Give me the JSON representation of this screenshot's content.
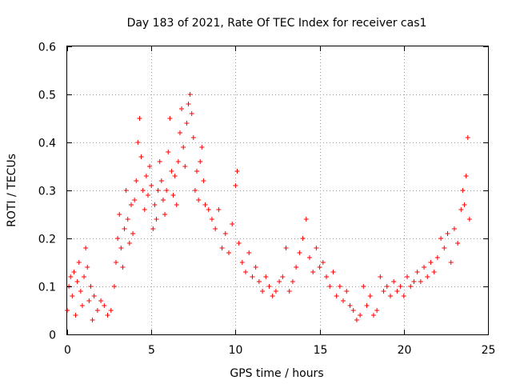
{
  "chart_data": {
    "type": "scatter",
    "title": "Day 183 of 2021, Rate Of TEC Index for receiver cas1",
    "xlabel": "GPS time / hours",
    "ylabel": "ROTI / TECUs",
    "xlim": [
      0,
      25
    ],
    "ylim": [
      0,
      0.6
    ],
    "x_ticks": [
      0,
      5,
      10,
      15,
      20,
      25
    ],
    "y_ticks": [
      0,
      0.1,
      0.2,
      0.3,
      0.4,
      0.5,
      0.6
    ],
    "x_tick_labels": [
      "0",
      "5",
      "10",
      "15",
      "20",
      "25"
    ],
    "y_tick_labels": [
      "0",
      "0.1",
      "0.2",
      "0.3",
      "0.4",
      "0.5",
      "0.6"
    ],
    "grid": true,
    "marker": "+",
    "marker_color": "#ff0000",
    "series": [
      {
        "points": [
          [
            0.0,
            0.05
          ],
          [
            0.1,
            0.1
          ],
          [
            0.2,
            0.12
          ],
          [
            0.3,
            0.08
          ],
          [
            0.4,
            0.13
          ],
          [
            0.5,
            0.04
          ],
          [
            0.6,
            0.11
          ],
          [
            0.7,
            0.15
          ],
          [
            0.8,
            0.09
          ],
          [
            0.9,
            0.06
          ],
          [
            1.0,
            0.12
          ],
          [
            1.1,
            0.18
          ],
          [
            1.2,
            0.14
          ],
          [
            1.3,
            0.07
          ],
          [
            1.4,
            0.1
          ],
          [
            1.5,
            0.03
          ],
          [
            1.6,
            0.08
          ],
          [
            1.8,
            0.05
          ],
          [
            2.0,
            0.07
          ],
          [
            2.2,
            0.06
          ],
          [
            2.4,
            0.04
          ],
          [
            2.6,
            0.05
          ],
          [
            2.8,
            0.1
          ],
          [
            2.9,
            0.15
          ],
          [
            3.0,
            0.2
          ],
          [
            3.1,
            0.25
          ],
          [
            3.2,
            0.18
          ],
          [
            3.3,
            0.14
          ],
          [
            3.4,
            0.22
          ],
          [
            3.5,
            0.3
          ],
          [
            3.6,
            0.24
          ],
          [
            3.7,
            0.19
          ],
          [
            3.8,
            0.27
          ],
          [
            3.9,
            0.21
          ],
          [
            4.0,
            0.28
          ],
          [
            4.1,
            0.32
          ],
          [
            4.2,
            0.4
          ],
          [
            4.3,
            0.45
          ],
          [
            4.4,
            0.37
          ],
          [
            4.5,
            0.3
          ],
          [
            4.6,
            0.26
          ],
          [
            4.7,
            0.33
          ],
          [
            4.8,
            0.29
          ],
          [
            4.9,
            0.35
          ],
          [
            5.0,
            0.31
          ],
          [
            5.1,
            0.22
          ],
          [
            5.2,
            0.27
          ],
          [
            5.3,
            0.24
          ],
          [
            5.4,
            0.3
          ],
          [
            5.5,
            0.36
          ],
          [
            5.6,
            0.32
          ],
          [
            5.7,
            0.28
          ],
          [
            5.8,
            0.25
          ],
          [
            5.9,
            0.3
          ],
          [
            6.0,
            0.38
          ],
          [
            6.1,
            0.45
          ],
          [
            6.2,
            0.34
          ],
          [
            6.3,
            0.29
          ],
          [
            6.4,
            0.33
          ],
          [
            6.5,
            0.27
          ],
          [
            6.6,
            0.36
          ],
          [
            6.7,
            0.42
          ],
          [
            6.8,
            0.47
          ],
          [
            6.9,
            0.39
          ],
          [
            7.0,
            0.35
          ],
          [
            7.1,
            0.44
          ],
          [
            7.2,
            0.48
          ],
          [
            7.3,
            0.5
          ],
          [
            7.4,
            0.46
          ],
          [
            7.5,
            0.41
          ],
          [
            7.6,
            0.3
          ],
          [
            7.7,
            0.34
          ],
          [
            7.8,
            0.28
          ],
          [
            7.9,
            0.36
          ],
          [
            8.0,
            0.39
          ],
          [
            8.1,
            0.32
          ],
          [
            8.2,
            0.27
          ],
          [
            8.4,
            0.26
          ],
          [
            8.6,
            0.24
          ],
          [
            8.8,
            0.22
          ],
          [
            9.0,
            0.26
          ],
          [
            9.2,
            0.18
          ],
          [
            9.4,
            0.21
          ],
          [
            9.6,
            0.17
          ],
          [
            9.8,
            0.23
          ],
          [
            10.0,
            0.31
          ],
          [
            10.1,
            0.34
          ],
          [
            10.2,
            0.19
          ],
          [
            10.4,
            0.15
          ],
          [
            10.6,
            0.13
          ],
          [
            10.8,
            0.17
          ],
          [
            11.0,
            0.12
          ],
          [
            11.2,
            0.14
          ],
          [
            11.4,
            0.11
          ],
          [
            11.6,
            0.09
          ],
          [
            11.8,
            0.12
          ],
          [
            12.0,
            0.1
          ],
          [
            12.2,
            0.08
          ],
          [
            12.4,
            0.09
          ],
          [
            12.6,
            0.11
          ],
          [
            12.8,
            0.12
          ],
          [
            13.0,
            0.18
          ],
          [
            13.2,
            0.09
          ],
          [
            13.4,
            0.11
          ],
          [
            13.6,
            0.14
          ],
          [
            13.8,
            0.17
          ],
          [
            14.0,
            0.2
          ],
          [
            14.2,
            0.24
          ],
          [
            14.4,
            0.16
          ],
          [
            14.6,
            0.13
          ],
          [
            14.8,
            0.18
          ],
          [
            15.0,
            0.14
          ],
          [
            15.2,
            0.15
          ],
          [
            15.4,
            0.12
          ],
          [
            15.6,
            0.1
          ],
          [
            15.8,
            0.13
          ],
          [
            16.0,
            0.08
          ],
          [
            16.2,
            0.1
          ],
          [
            16.4,
            0.07
          ],
          [
            16.6,
            0.09
          ],
          [
            16.8,
            0.06
          ],
          [
            17.0,
            0.05
          ],
          [
            17.2,
            0.03
          ],
          [
            17.4,
            0.04
          ],
          [
            17.6,
            0.1
          ],
          [
            17.8,
            0.06
          ],
          [
            18.0,
            0.08
          ],
          [
            18.2,
            0.04
          ],
          [
            18.4,
            0.05
          ],
          [
            18.6,
            0.12
          ],
          [
            18.8,
            0.09
          ],
          [
            19.0,
            0.1
          ],
          [
            19.2,
            0.08
          ],
          [
            19.4,
            0.11
          ],
          [
            19.6,
            0.09
          ],
          [
            19.8,
            0.1
          ],
          [
            20.0,
            0.08
          ],
          [
            20.2,
            0.12
          ],
          [
            20.4,
            0.1
          ],
          [
            20.6,
            0.11
          ],
          [
            20.8,
            0.13
          ],
          [
            21.0,
            0.11
          ],
          [
            21.2,
            0.14
          ],
          [
            21.4,
            0.12
          ],
          [
            21.6,
            0.15
          ],
          [
            21.8,
            0.13
          ],
          [
            22.0,
            0.16
          ],
          [
            22.2,
            0.2
          ],
          [
            22.4,
            0.18
          ],
          [
            22.6,
            0.21
          ],
          [
            22.8,
            0.15
          ],
          [
            23.0,
            0.22
          ],
          [
            23.2,
            0.19
          ],
          [
            23.4,
            0.26
          ],
          [
            23.5,
            0.3
          ],
          [
            23.6,
            0.27
          ],
          [
            23.7,
            0.33
          ],
          [
            23.8,
            0.41
          ],
          [
            23.9,
            0.24
          ]
        ]
      }
    ]
  }
}
